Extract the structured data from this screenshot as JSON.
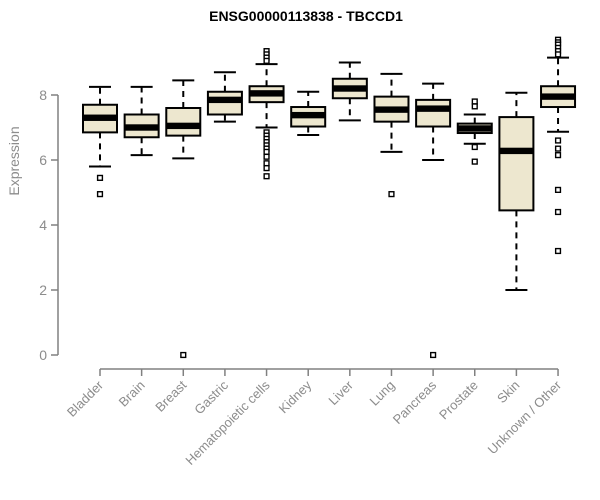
{
  "page": {
    "title": "ENSG00000113838 - TBCCD1"
  },
  "colors": {
    "background": "#ffffff",
    "box_fill": "#ede7cf",
    "box_border": "#000000",
    "median": "#000000",
    "whisker": "#000000",
    "outlier_stroke": "#000000",
    "outlier_fill": "#ffffff",
    "axis_line": "#808080",
    "tick_label": "#8c8c8c",
    "title_color": "#000000"
  },
  "chart_data": {
    "type": "boxplot",
    "title": "ENSG00000113838 - TBCCD1",
    "xlabel": "",
    "ylabel": "Expression",
    "ylim": [
      0,
      9.8
    ],
    "yticks": [
      0,
      2,
      4,
      6,
      8
    ],
    "grid": false,
    "legend": "none",
    "categories": [
      "Bladder",
      "Brain",
      "Breast",
      "Gastric",
      "Hematopoietic cells",
      "Kidney",
      "Liver",
      "Lung",
      "Pancreas",
      "Prostate",
      "Skin",
      "Unknown / Other"
    ],
    "boxes": [
      {
        "name": "Bladder",
        "whisker_low": 5.8,
        "q1": 6.85,
        "median": 7.3,
        "q3": 7.7,
        "whisker_high": 8.25,
        "outliers": [
          5.45,
          4.95
        ]
      },
      {
        "name": "Brain",
        "whisker_low": 6.15,
        "q1": 6.7,
        "median": 7.0,
        "q3": 7.4,
        "whisker_high": 8.25,
        "outliers": []
      },
      {
        "name": "Breast",
        "whisker_low": 6.05,
        "q1": 6.75,
        "median": 7.05,
        "q3": 7.6,
        "whisker_high": 8.45,
        "outliers": [
          0
        ]
      },
      {
        "name": "Gastric",
        "whisker_low": 7.18,
        "q1": 7.4,
        "median": 7.85,
        "q3": 8.1,
        "whisker_high": 8.7,
        "outliers": []
      },
      {
        "name": "Hematopoietic cells",
        "whisker_low": 7.0,
        "q1": 7.78,
        "median": 8.05,
        "q3": 8.27,
        "whisker_high": 8.95,
        "outliers": [
          9.35,
          9.25,
          9.15,
          9.05,
          6.85,
          6.75,
          6.65,
          6.55,
          6.45,
          6.35,
          6.25,
          6.1,
          5.9,
          5.75,
          5.5
        ]
      },
      {
        "name": "Kidney",
        "whisker_low": 6.77,
        "q1": 7.03,
        "median": 7.38,
        "q3": 7.63,
        "whisker_high": 8.1,
        "outliers": []
      },
      {
        "name": "Liver",
        "whisker_low": 7.22,
        "q1": 7.9,
        "median": 8.2,
        "q3": 8.5,
        "whisker_high": 9.0,
        "outliers": []
      },
      {
        "name": "Lung",
        "whisker_low": 6.25,
        "q1": 7.18,
        "median": 7.55,
        "q3": 7.95,
        "whisker_high": 8.65,
        "outliers": [
          4.95
        ]
      },
      {
        "name": "Pancreas",
        "whisker_low": 6.0,
        "q1": 7.03,
        "median": 7.58,
        "q3": 7.85,
        "whisker_high": 8.35,
        "outliers": [
          0
        ]
      },
      {
        "name": "Prostate",
        "whisker_low": 6.5,
        "q1": 6.83,
        "median": 6.97,
        "q3": 7.12,
        "whisker_high": 7.4,
        "outliers": [
          7.8,
          7.65,
          6.4,
          5.95
        ]
      },
      {
        "name": "Skin",
        "whisker_low": 2.0,
        "q1": 4.45,
        "median": 6.28,
        "q3": 7.32,
        "whisker_high": 8.07,
        "outliers": []
      },
      {
        "name": "Unknown / Other",
        "whisker_low": 6.87,
        "q1": 7.63,
        "median": 7.95,
        "q3": 8.27,
        "whisker_high": 9.15,
        "outliers": [
          9.7,
          9.62,
          9.55,
          9.45,
          9.35,
          9.25,
          6.6,
          6.35,
          6.15,
          5.08,
          4.4,
          3.2
        ]
      }
    ]
  }
}
